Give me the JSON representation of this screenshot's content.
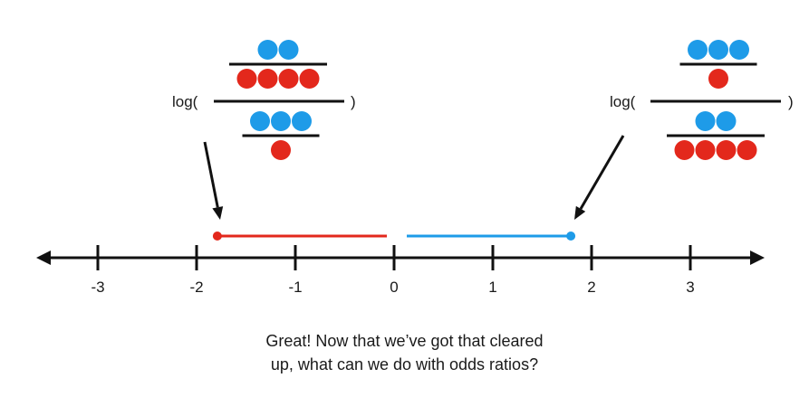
{
  "number_line": {
    "ticks": [
      "-3",
      "-2",
      "-1",
      "0",
      "1",
      "2",
      "3"
    ],
    "tick_values": [
      -3,
      -2,
      -1,
      0,
      1,
      2,
      3
    ],
    "range": [
      -3.7,
      3.7
    ]
  },
  "left_expression": {
    "log_label": "log(",
    "close_paren": ")",
    "numerator": {
      "blue_over": 2,
      "red_under": 4
    },
    "denominator": {
      "blue_over": 3,
      "red_under": 1
    },
    "value": -1.79
  },
  "right_expression": {
    "log_label": "log(",
    "close_paren": ")",
    "numerator": {
      "blue_over": 3,
      "red_under": 1
    },
    "denominator": {
      "blue_over": 2,
      "red_under": 4
    },
    "value": 1.79
  },
  "colors": {
    "blue": "#1e9be8",
    "red": "#e3281c",
    "line": "#111111"
  },
  "caption": {
    "line1": "Great! Now that we’ve got that cleared",
    "line2": "up, what can we do with odds ratios?"
  }
}
